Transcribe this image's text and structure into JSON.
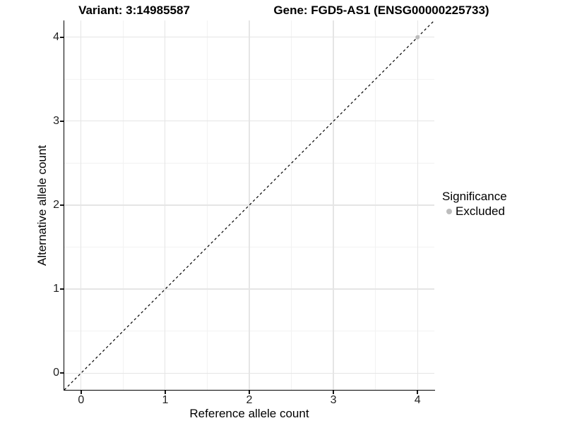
{
  "legend": {
    "title": "Significance",
    "items": [
      {
        "label": "Excluded"
      }
    ]
  },
  "chart_data": {
    "type": "scatter",
    "titles": [
      "Variant: 3:14985587",
      "Gene: FGD5-AS1 (ENSG00000225733)"
    ],
    "xlabel": "Reference allele count",
    "ylabel": "Alternative allele count",
    "xlim": [
      -0.2,
      4.2
    ],
    "ylim": [
      -0.2,
      4.2
    ],
    "xticks": [
      0,
      1,
      2,
      3,
      4
    ],
    "yticks": [
      0,
      1,
      2,
      3,
      4
    ],
    "grid": {
      "major_step": 1,
      "minor_step": 0.5
    },
    "reference_line": {
      "kind": "identity_y_equals_x",
      "from": [
        -0.2,
        -0.2
      ],
      "to": [
        4.2,
        4.2
      ],
      "style": "dashed",
      "color": "#000000"
    },
    "series": [
      {
        "name": "Excluded",
        "color": "#bdbdbd",
        "points": [
          [
            4,
            4
          ]
        ]
      }
    ],
    "legend_position": "right"
  }
}
